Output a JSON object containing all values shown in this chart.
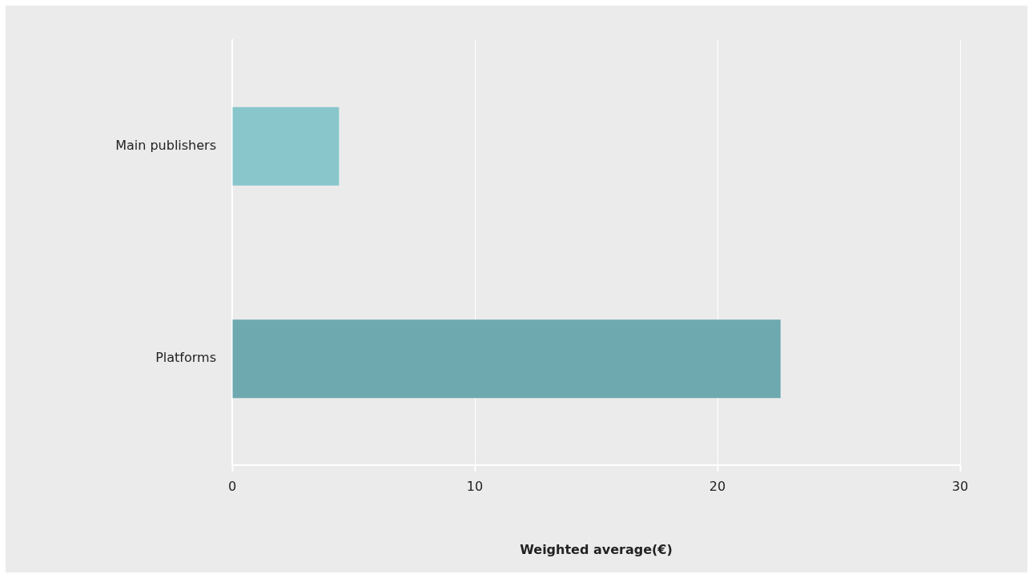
{
  "chart_data": {
    "type": "bar",
    "orientation": "horizontal",
    "categories": [
      "Main publishers",
      "Platforms"
    ],
    "colors": [
      "#88c6cc",
      "#6fa9b0"
    ],
    "values": [
      4.4,
      22.6
    ],
    "xlabel": "Weighted average(€)",
    "xlim": [
      0,
      30
    ],
    "xticks": [
      0,
      10,
      20,
      30
    ],
    "grid": "x",
    "legend": false
  }
}
